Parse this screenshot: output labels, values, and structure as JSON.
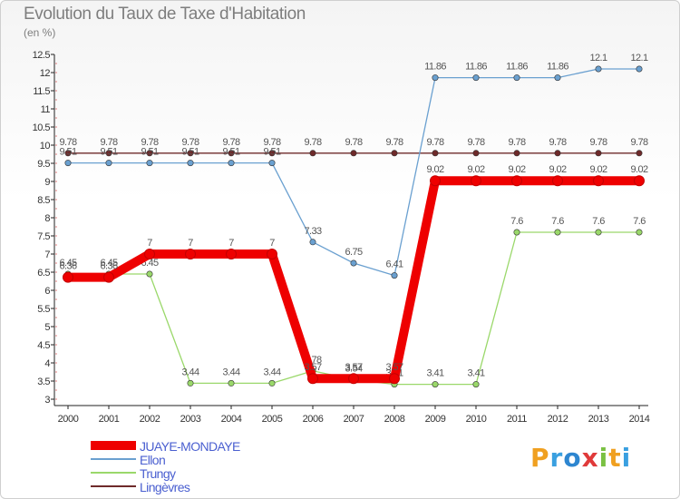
{
  "header": {
    "title": "Evolution du Taux de Taxe d'Habitation",
    "subtitle": "(en %)"
  },
  "logo": {
    "text": "Proxiti",
    "letters": [
      {
        "ch": "P",
        "color": "#f0a020"
      },
      {
        "ch": "r",
        "color": "#3aa0e0"
      },
      {
        "ch": "o",
        "color": "#2e86d0"
      },
      {
        "ch": "x",
        "color": "#e03a3a"
      },
      {
        "ch": "i",
        "color": "#7ac143"
      },
      {
        "ch": "t",
        "color": "#f0a020"
      },
      {
        "ch": "i",
        "color": "#3aa0e0"
      }
    ]
  },
  "chart_data": {
    "type": "line",
    "title": "Evolution du Taux de Taxe d'Habitation",
    "ylabel": "(en %)",
    "xlabel": "",
    "categories": [
      "2000",
      "2001",
      "2002",
      "2003",
      "2004",
      "2005",
      "2006",
      "2007",
      "2008",
      "2009",
      "2010",
      "2011",
      "2012",
      "2013",
      "2014"
    ],
    "ylim": [
      3,
      12.5
    ],
    "yticks": [
      "3",
      "3.5",
      "4",
      "4.5",
      "5",
      "5.5",
      "6",
      "6.5",
      "7",
      "7.5",
      "8",
      "8.5",
      "9",
      "9.5",
      "10",
      "10.5",
      "11",
      "11.5",
      "12",
      "12.5"
    ],
    "grid": false,
    "legend": "bottom-left",
    "series": [
      {
        "name": "Lingèvres",
        "color": "#6e2a2a",
        "values": [
          9.78,
          9.78,
          9.78,
          9.78,
          9.78,
          9.78,
          9.78,
          9.78,
          9.78,
          9.78,
          9.78,
          9.78,
          9.78,
          9.78,
          9.78
        ],
        "labels": [
          "9.78",
          "9.78",
          "9.78",
          "9.78",
          "9.78",
          "9.78",
          "9.78",
          "9.78",
          "9.78",
          "9.78",
          "9.78",
          "9.78",
          "9.78",
          "9.78",
          "9.78"
        ]
      },
      {
        "name": "Ellon",
        "color": "#6aa0d0",
        "values": [
          9.51,
          9.51,
          9.51,
          9.51,
          9.51,
          9.51,
          7.33,
          6.75,
          6.41,
          11.86,
          11.86,
          11.86,
          11.86,
          12.1,
          12.1
        ],
        "labels": [
          "9.51",
          "9.51",
          "9.51",
          "9.51",
          "9.51",
          "9.51",
          "7.33",
          "6.75",
          "6.41",
          "11.86",
          "11.86",
          "11.86",
          "11.86",
          "12.1",
          "12.1"
        ]
      },
      {
        "name": "Trungy",
        "color": "#9ad86a",
        "values": [
          6.45,
          6.45,
          6.45,
          3.44,
          3.44,
          3.44,
          3.78,
          3.54,
          3.41,
          3.41,
          3.41,
          7.6,
          7.6,
          7.6,
          7.6
        ],
        "labels": [
          "6.45",
          "6.45",
          "6.45",
          "3.44",
          "3.44",
          "3.44",
          "3.78",
          "3.54",
          "3.41",
          "3.41",
          "3.41",
          "7.6",
          "7.6",
          "7.6",
          "7.6"
        ]
      },
      {
        "name": "JUAYE-MONDAYE",
        "color": "#ee0000",
        "values": [
          6.36,
          6.36,
          7,
          7,
          7,
          7,
          3.57,
          3.57,
          3.57,
          9.02,
          9.02,
          9.02,
          9.02,
          9.02,
          9.02
        ],
        "labels": [
          "6.36",
          "6.36",
          "7",
          "7",
          "7",
          "7",
          "3.57",
          "3.57",
          "3.57",
          "9.02",
          "9.02",
          "9.02",
          "9.02",
          "9.02",
          "9.02"
        ]
      }
    ],
    "legend_order": [
      "JUAYE-MONDAYE",
      "Ellon",
      "Trungy",
      "Lingèvres"
    ]
  }
}
